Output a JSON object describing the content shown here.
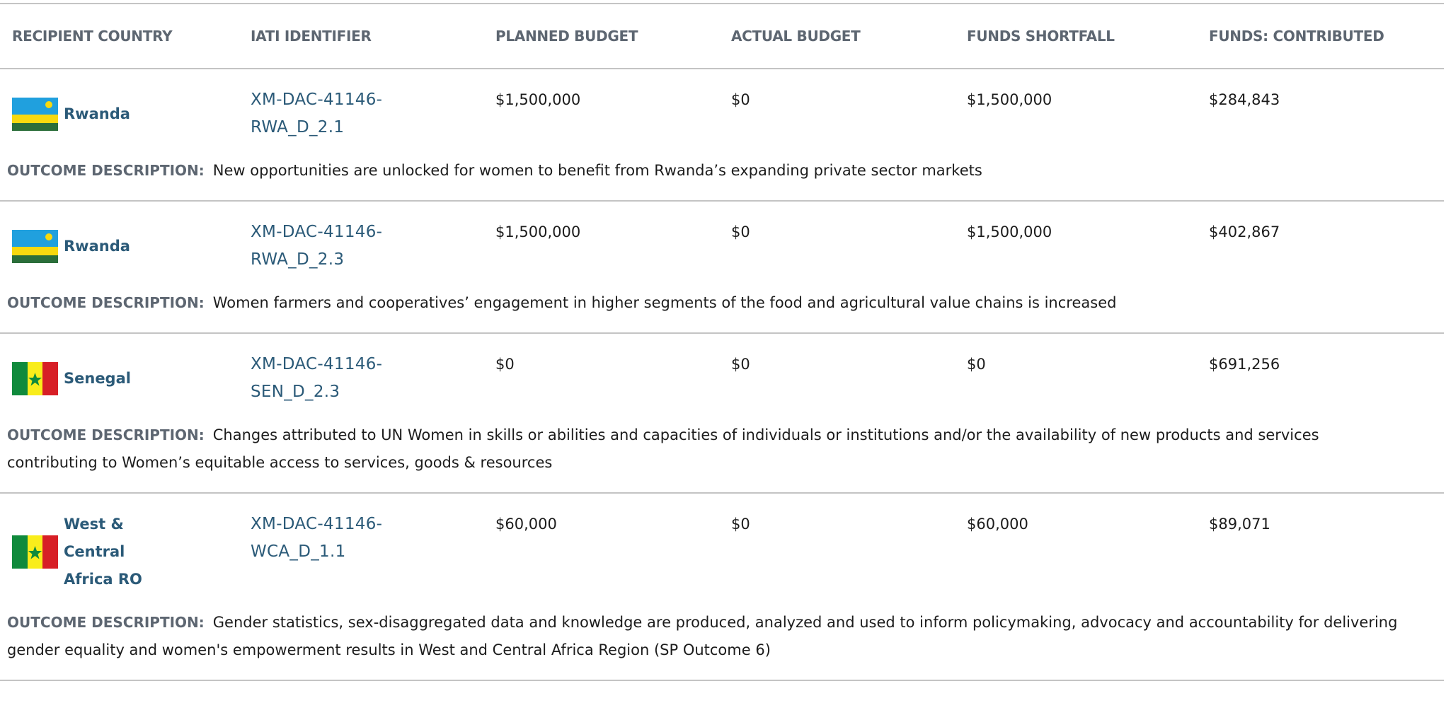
{
  "table": {
    "columns": [
      "RECIPIENT COUNTRY",
      "IATI IDENTIFIER",
      "PLANNED BUDGET",
      "ACTUAL BUDGET",
      "FUNDS SHORTFALL",
      "FUNDS: CONTRIBUTED"
    ],
    "outcome_label": "OUTCOME DESCRIPTION:",
    "rows": [
      {
        "country": "Rwanda",
        "iati": "XM-DAC-41146-RWA_D_2.1",
        "planned": "$1,500,000",
        "actual": "$0",
        "shortfall": "$1,500,000",
        "contributed": "$284,843",
        "outcome": "New opportunities are unlocked for women to benefit from Rwanda’s expanding private sector markets"
      },
      {
        "country": "Rwanda",
        "iati": "XM-DAC-41146-RWA_D_2.3",
        "planned": "$1,500,000",
        "actual": "$0",
        "shortfall": "$1,500,000",
        "contributed": "$402,867",
        "outcome": "Women farmers and cooperatives’ engagement in higher segments of the food and agricultural value chains is increased"
      },
      {
        "country": "Senegal",
        "iati": "XM-DAC-41146-SEN_D_2.3",
        "planned": "$0",
        "actual": "$0",
        "shortfall": "$0",
        "contributed": "$691,256",
        "outcome": "Changes attributed to UN Women in skills or abilities and capacities of individuals or institutions and/or the availability of new products and services contributing to Women’s equitable access to services, goods & resources"
      },
      {
        "country": "West & Central Africa RO",
        "iati": "XM-DAC-41146-WCA_D_1.1",
        "planned": "$60,000",
        "actual": "$0",
        "shortfall": "$60,000",
        "contributed": "$89,071",
        "outcome": "Gender statistics, sex-disaggregated data and knowledge are produced, analyzed and used to inform policymaking, advocacy and accountability for delivering gender equality and women's empowerment results in West and Central Africa Region (SP Outcome 6)"
      }
    ]
  }
}
